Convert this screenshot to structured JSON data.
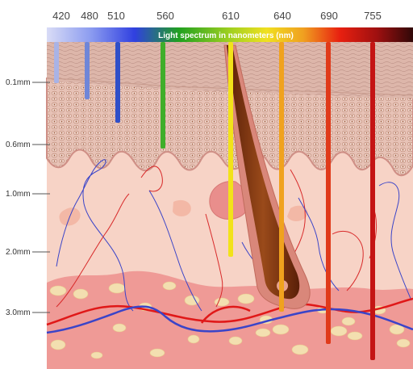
{
  "spectrum": {
    "title": "Light spectrum in nanometers (nm)",
    "wavelengths": [
      "420",
      "480",
      "510",
      "560",
      "610",
      "640",
      "690",
      "755"
    ]
  },
  "depth_labels": [
    "0.1mm",
    "0.6mm",
    "1.0mm",
    "2.0mm",
    "3.0mm"
  ],
  "beam_colors": [
    "#a9b3e6",
    "#6f86d8",
    "#2f4fc8",
    "#3fae2a",
    "#f2e21a",
    "#f0a21e",
    "#e03a1a",
    "#c41414"
  ],
  "tissue_colors": {
    "epidermis": "#dcaaa0",
    "dermis": "#f7d3c6",
    "hypodermis": "#ef9a96",
    "fat_cells": "#f3dfb0",
    "hair": "#7a3010",
    "blood_red": "#e01818",
    "blood_blue": "#3a44c8"
  }
}
